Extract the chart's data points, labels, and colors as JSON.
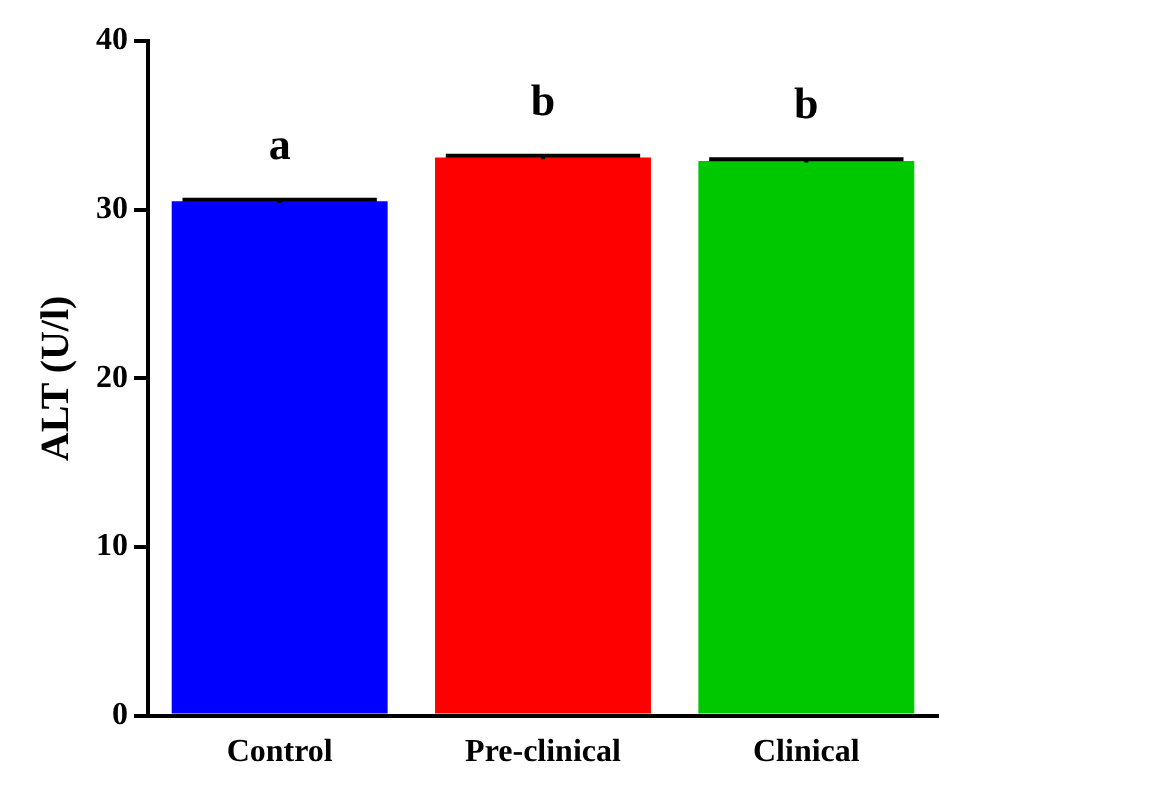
{
  "chart_data": {
    "type": "bar",
    "ylabel": "ALT (U/l)",
    "categories": [
      "Control",
      "Pre-clinical",
      "Clinical"
    ],
    "values": [
      30.5,
      33.1,
      32.9
    ],
    "colors": [
      "#0000ff",
      "#ff0000",
      "#00c800"
    ],
    "errors": [
      0.1,
      0.1,
      0.1
    ],
    "ylim": [
      0,
      40
    ],
    "yticks": [
      0,
      10,
      20,
      30,
      40
    ],
    "grid": false,
    "legend": false,
    "annotations": [
      "a",
      "b",
      "b"
    ]
  }
}
